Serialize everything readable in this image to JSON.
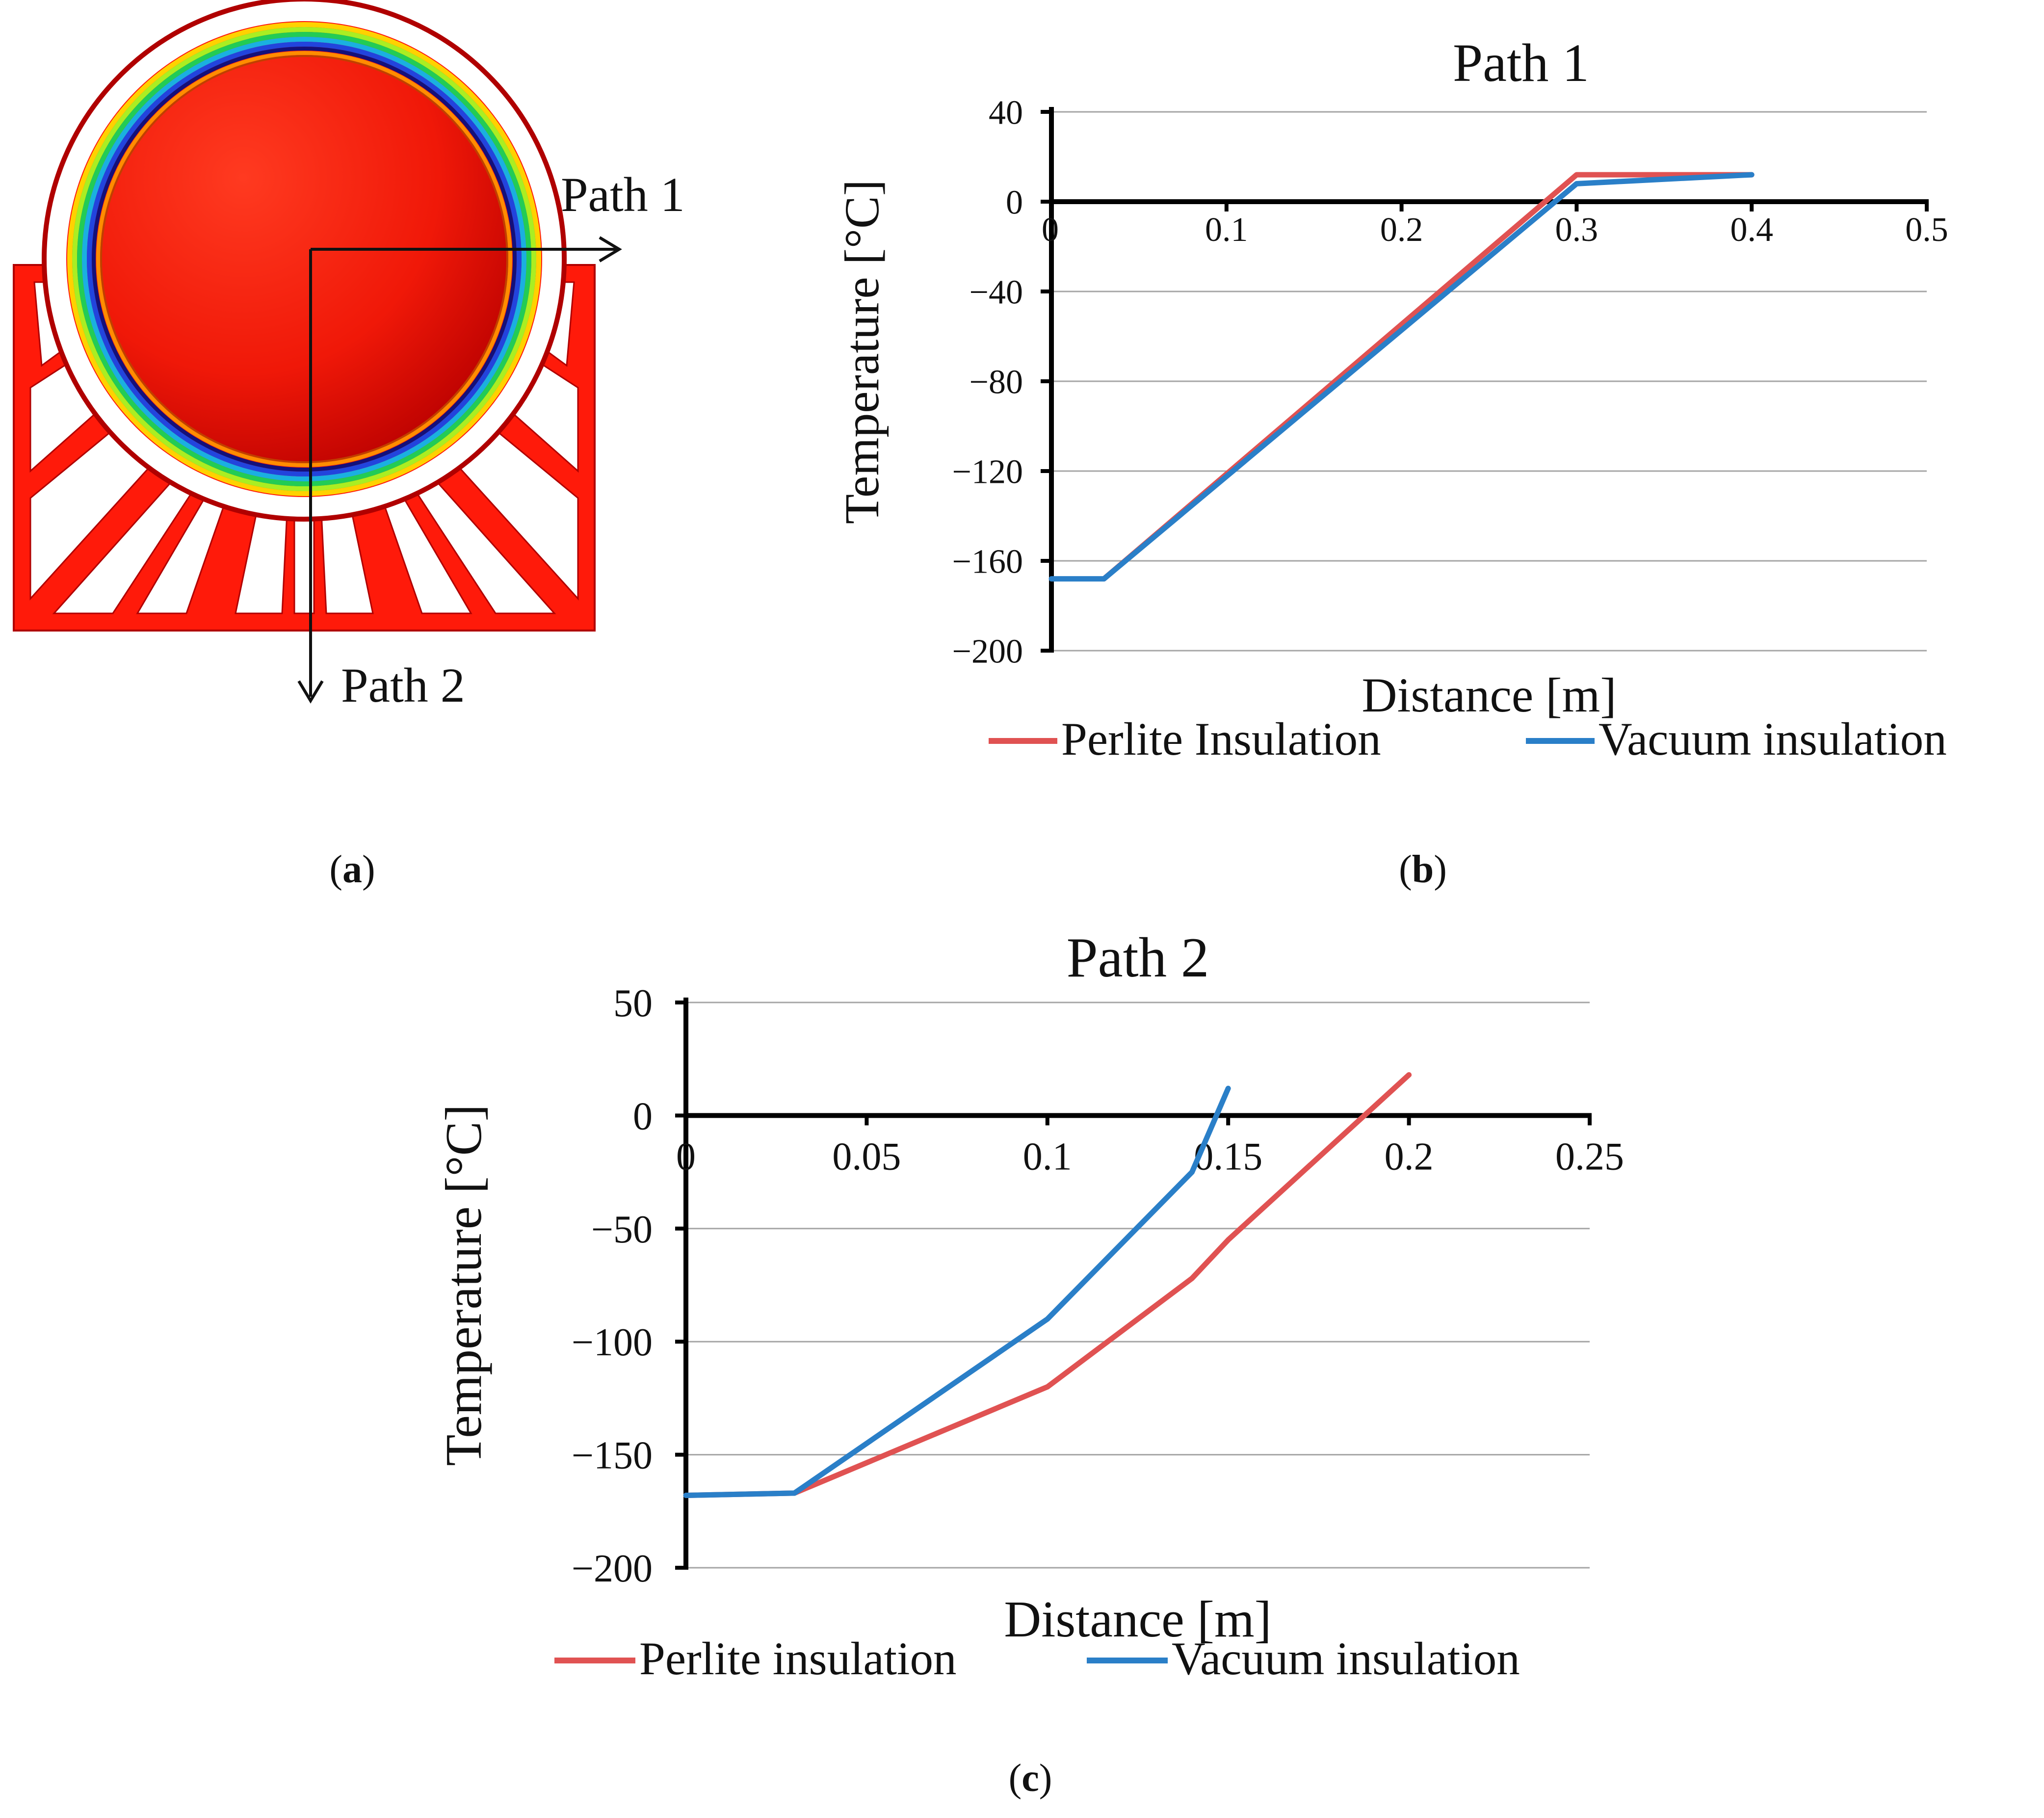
{
  "panels": {
    "a": {
      "caption": "(a)",
      "caption_open": "(",
      "caption_letter": "a",
      "caption_close": ")",
      "path1_label": "Path 1",
      "path2_label": "Path 2",
      "colors": {
        "fill": "#ff1a0a",
        "support": "#ff1a0a",
        "outline": "#c00000",
        "rings": [
          "#ffd200",
          "#aaee22",
          "#22cc55",
          "#1ab0e0",
          "#2244dd",
          "#14107a",
          "#ff8c00"
        ]
      }
    },
    "b": {
      "caption": "(b)",
      "caption_open": "(",
      "caption_letter": "b",
      "caption_close": ")"
    },
    "c": {
      "caption": "(c)",
      "caption_open": "(",
      "caption_letter": "c",
      "caption_close": ")"
    }
  },
  "chart_data": [
    {
      "type": "line",
      "title": "Path 1",
      "xlabel": "Distance [m]",
      "ylabel": "Temperature [°C]",
      "xlim": [
        0,
        0.5
      ],
      "ylim": [
        -200,
        40
      ],
      "xticks": [
        0,
        0.1,
        0.2,
        0.3,
        0.4,
        0.5
      ],
      "xtick_labels": [
        "0",
        "0.1",
        "0.2",
        "0.3",
        "0.4",
        "0.5"
      ],
      "yticks": [
        40,
        0,
        -40,
        -80,
        -120,
        -160,
        -200
      ],
      "ytick_labels": [
        "40",
        "0",
        "−40",
        "−80",
        "−120",
        "−160",
        "−200"
      ],
      "grid": true,
      "legend": "bottom",
      "series": [
        {
          "name": "Perlite Insulation",
          "color": "#e05252",
          "x": [
            0.03,
            0.3,
            0.4
          ],
          "y": [
            -168,
            12,
            12
          ]
        },
        {
          "name": "Vacuum insulation",
          "color": "#2a7fc8",
          "x": [
            0,
            0.03,
            0.3,
            0.4
          ],
          "y": [
            -168,
            -168,
            8,
            12
          ]
        }
      ]
    },
    {
      "type": "line",
      "title": "Path 2",
      "xlabel": "Distance [m]",
      "ylabel": "Temperature [°C]",
      "xlim": [
        0,
        0.25
      ],
      "ylim": [
        -200,
        50
      ],
      "xticks": [
        0,
        0.05,
        0.1,
        0.15,
        0.2,
        0.25
      ],
      "xtick_labels": [
        "0",
        "0.05",
        "0.1",
        "0.15",
        "0.2",
        "0.25"
      ],
      "yticks": [
        50,
        0,
        -50,
        -100,
        -150,
        -200
      ],
      "ytick_labels": [
        "50",
        "0",
        "−50",
        "−100",
        "−150",
        "−200"
      ],
      "grid": true,
      "legend": "bottom",
      "series": [
        {
          "name": "Perlite insulation",
          "color": "#e05252",
          "x": [
            0,
            0.03,
            0.1,
            0.14,
            0.15,
            0.2
          ],
          "y": [
            -168,
            -167,
            -120,
            -72,
            -55,
            18
          ]
        },
        {
          "name": "Vacuum insulation",
          "color": "#2a7fc8",
          "x": [
            0,
            0.03,
            0.1,
            0.14,
            0.15
          ],
          "y": [
            -168,
            -167,
            -90,
            -25,
            12
          ]
        }
      ]
    }
  ]
}
